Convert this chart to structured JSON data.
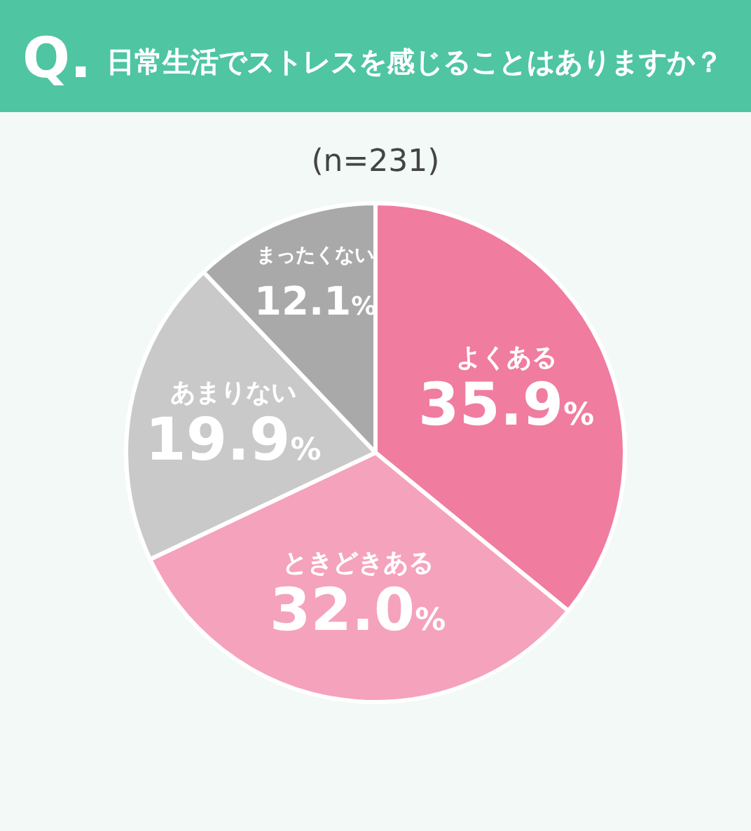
{
  "chart_data": {
    "type": "pie",
    "title": "日常生活でストレスを感じることはありますか？",
    "subtitle": "(n=231)",
    "annotations": [
      "Q."
    ],
    "categories": [
      "よくある",
      "ときどきある",
      "あまりない",
      "まったくない"
    ],
    "values": [
      35.9,
      32.0,
      19.9,
      12.1
    ],
    "value_labels": [
      "35.9%",
      "32.0%",
      "19.9%",
      "12.1%"
    ],
    "colors": [
      "#f07ca0",
      "#f5a2bd",
      "#c9c9c9",
      "#a9a9a9"
    ],
    "legend": false
  }
}
